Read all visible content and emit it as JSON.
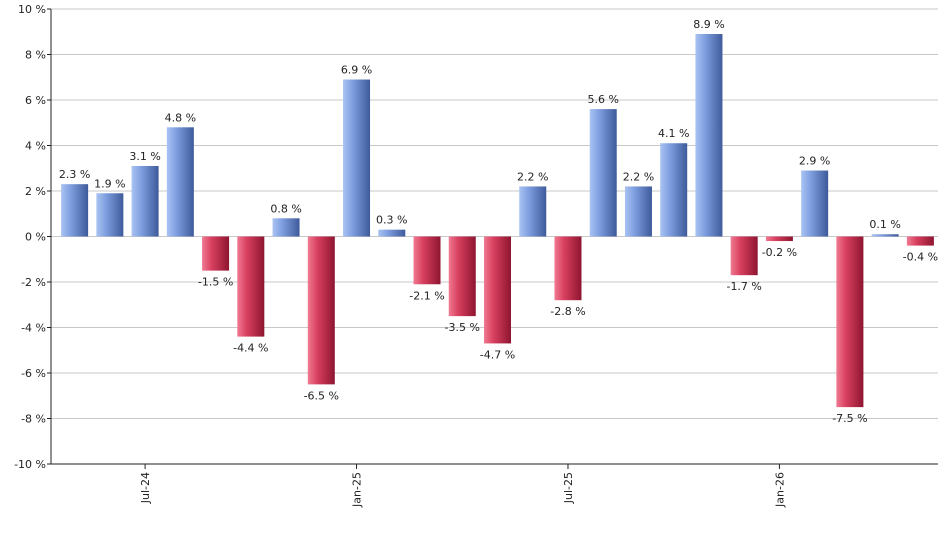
{
  "chart_data": {
    "type": "bar",
    "y_unit_suffix": " %",
    "ylim": [
      -10,
      10
    ],
    "yticks": [
      -10,
      -8,
      -6,
      -4,
      -2,
      0,
      2,
      4,
      6,
      8,
      10
    ],
    "xtick_labels": [
      "Jul-24",
      "Jan-25",
      "Jul-25",
      "Jan-26"
    ],
    "xtick_index": [
      2,
      8,
      14,
      20
    ],
    "grid": true,
    "colors": {
      "positive": "#5a7fc7",
      "negative": "#c7284a"
    },
    "values": [
      2.3,
      1.9,
      3.1,
      4.8,
      -1.5,
      -4.4,
      0.8,
      -6.5,
      6.9,
      0.3,
      -2.1,
      -3.5,
      -4.7,
      2.2,
      -2.8,
      5.6,
      2.2,
      4.1,
      8.9,
      -1.7,
      -0.2,
      2.9,
      -7.5,
      0.1,
      -0.4
    ],
    "labels": [
      "2.3 %",
      "1.9 %",
      "3.1 %",
      "4.8 %",
      "-1.5 %",
      "-4.4 %",
      "0.8 %",
      "-6.5 %",
      "6.9 %",
      "0.3 %",
      "-2.1 %",
      "-3.5 %",
      "-4.7 %",
      "2.2 %",
      "-2.8 %",
      "5.6 %",
      "2.2 %",
      "4.1 %",
      "8.9 %",
      "-1.7 %",
      "-0.2 %",
      "2.9 %",
      "-7.5 %",
      "0.1 %",
      "-0.4 %"
    ]
  }
}
